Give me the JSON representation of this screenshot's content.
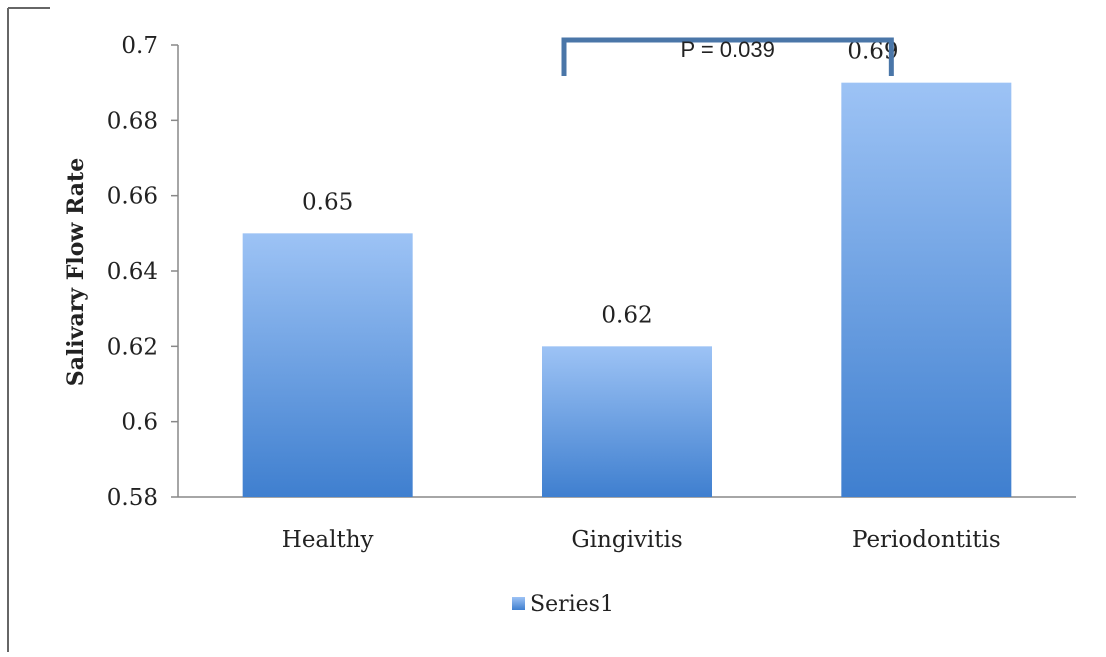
{
  "chart_data": {
    "type": "bar",
    "categories": [
      "Healthy",
      "Gingivitis",
      "Periodontitis"
    ],
    "series": [
      {
        "name": "Series1",
        "values": [
          0.65,
          0.62,
          0.69
        ]
      }
    ],
    "data_labels": [
      "0.65",
      "0.62",
      "0.69"
    ],
    "ylabel": "Salivary Flow Rate",
    "xlabel": "",
    "ylim": [
      0.58,
      0.7
    ],
    "yticks": [
      0.58,
      0.6,
      0.62,
      0.64,
      0.66,
      0.68,
      0.7
    ],
    "ytick_labels": [
      "0.58",
      "0.6",
      "0.62",
      "0.64",
      "0.66",
      "0.68",
      "0.7"
    ],
    "grid": false,
    "legend": {
      "position": "bottom",
      "label": "Series1"
    },
    "annotation": {
      "label": "P = 0.039",
      "from_category": "Gingivitis",
      "to_category": "Periodontitis"
    },
    "colors": {
      "bar_top": "#9dc3f5",
      "bar_bottom": "#3f7fcf",
      "bracket": "#4a76a8",
      "axis": "#888888"
    }
  }
}
